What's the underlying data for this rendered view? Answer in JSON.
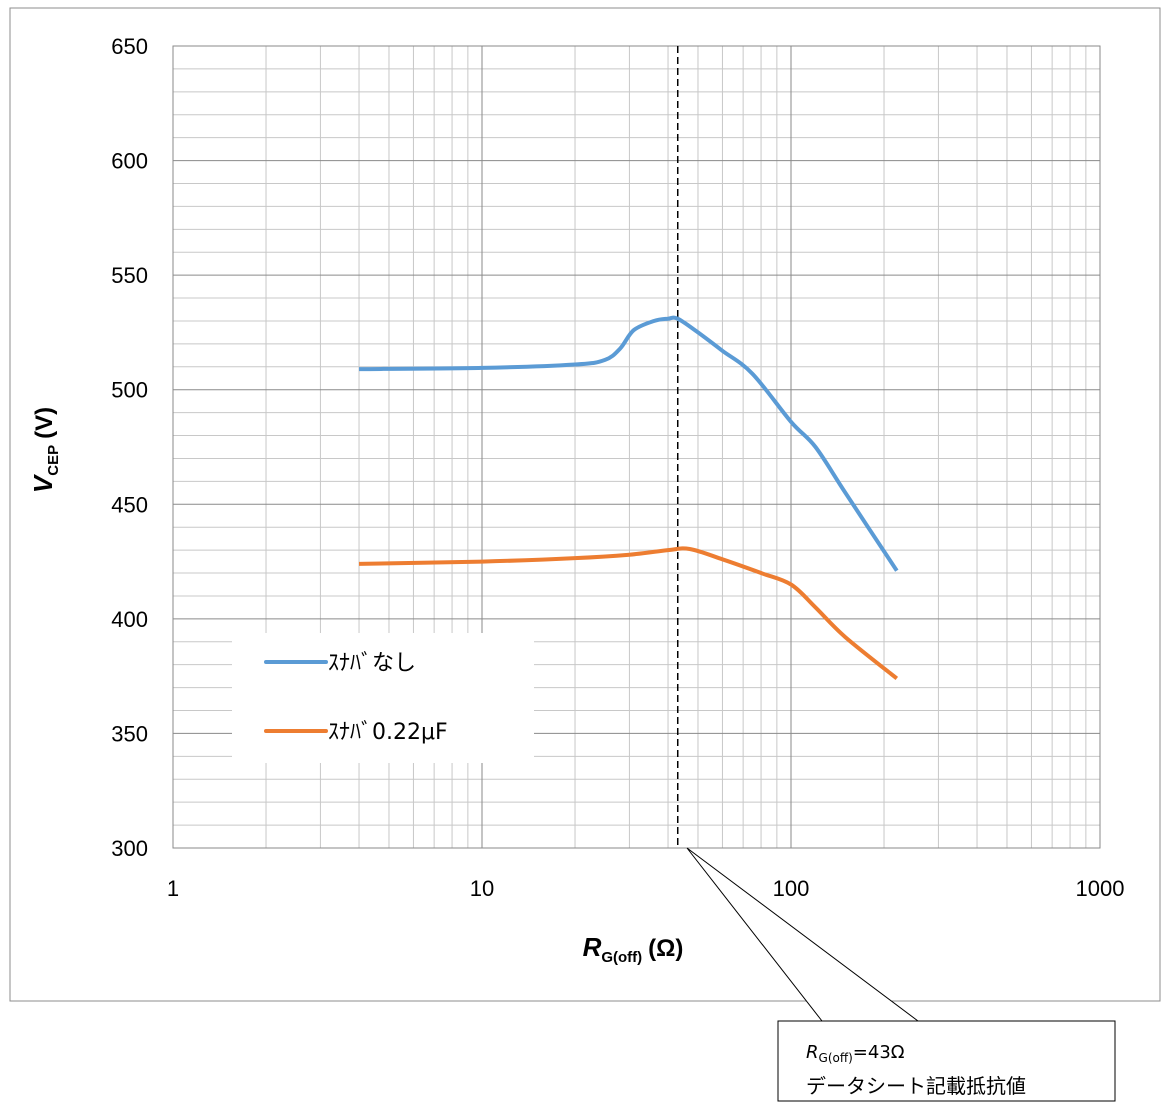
{
  "chart_data": {
    "type": "line",
    "xscale": "log",
    "xlim": [
      1,
      1000
    ],
    "ylim": [
      300,
      650
    ],
    "xticks": [
      "1",
      "10",
      "100",
      "1000"
    ],
    "yticks": [
      "300",
      "350",
      "400",
      "450",
      "500",
      "550",
      "600",
      "650"
    ],
    "grid": true,
    "xlabel": {
      "main": "R",
      "sub": "G(off)",
      "unit": "(Ω)"
    },
    "ylabel": {
      "main": "V",
      "sub": "CEP",
      "unit": "(V)"
    },
    "legend_position": "bottom-left",
    "series": [
      {
        "name": "ｽﾅﾊﾞなし",
        "color": "#5b9bd5",
        "x": [
          4,
          10,
          20,
          25,
          28,
          31,
          36,
          40,
          43,
          50,
          60,
          75,
          100,
          120,
          150,
          220
        ],
        "y": [
          509,
          509.5,
          511,
          513,
          518,
          526,
          530,
          531,
          531,
          525,
          517,
          507,
          486,
          475,
          455,
          421
        ]
      },
      {
        "name": "ｽﾅﾊﾞ0.22μF",
        "color": "#ed7d31",
        "x": [
          4,
          10,
          20,
          30,
          40,
          47,
          60,
          80,
          100,
          120,
          150,
          220
        ],
        "y": [
          424,
          425,
          426.5,
          428,
          430,
          430.5,
          426,
          420,
          415,
          405,
          392,
          374
        ]
      }
    ],
    "reference_line": {
      "x": 43,
      "style": "dashed"
    },
    "callout": {
      "line1_main": "R",
      "line1_sub": "G(off)",
      "line1_value": "=43Ω",
      "line2": "データシート記載抵抗値"
    }
  }
}
